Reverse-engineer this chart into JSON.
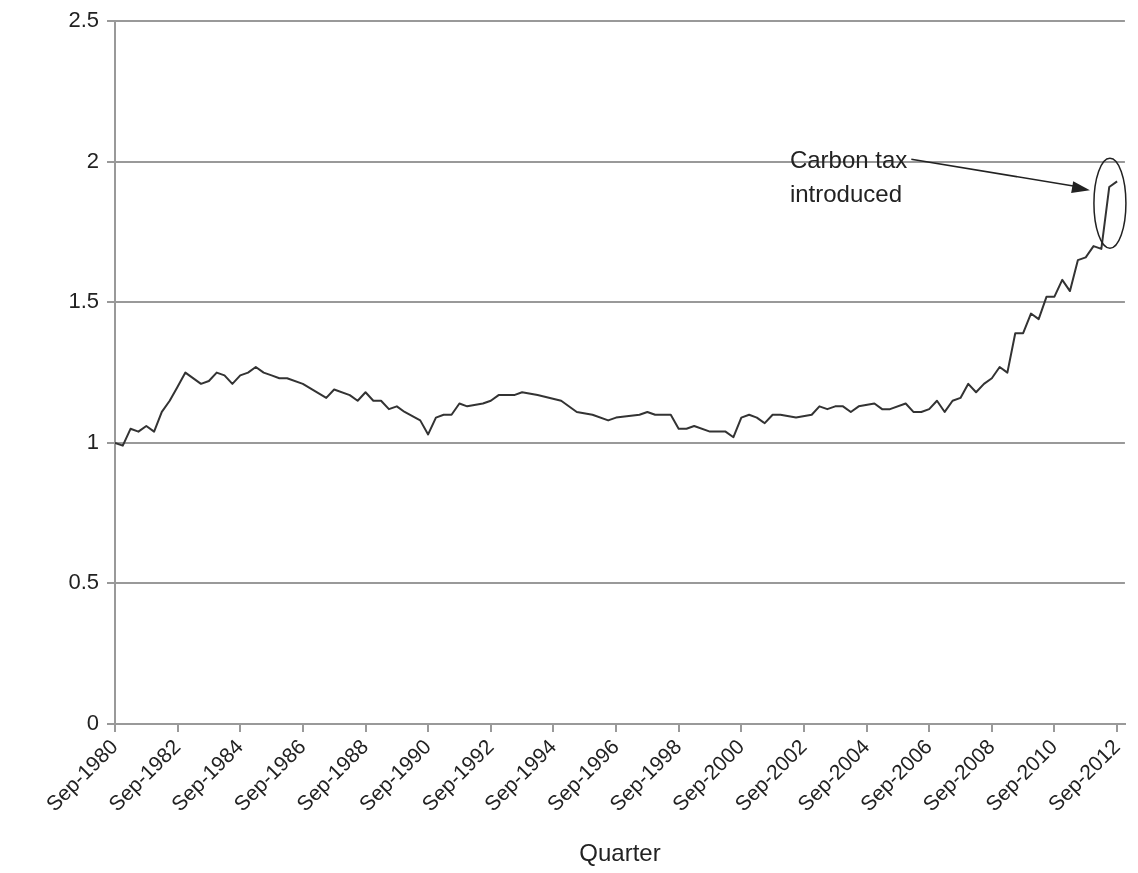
{
  "chart_data": {
    "type": "line",
    "xlabel": "Quarter",
    "x": [
      "1980-09",
      "1980-12",
      "1981-03",
      "1981-06",
      "1981-09",
      "1981-12",
      "1982-03",
      "1982-06",
      "1982-09",
      "1982-12",
      "1983-06",
      "1983-09",
      "1983-12",
      "1984-03",
      "1984-06",
      "1984-09",
      "1984-12",
      "1985-03",
      "1985-06",
      "1985-09",
      "1985-12",
      "1986-03",
      "1986-09",
      "1987-06",
      "1987-09",
      "1988-03",
      "1988-06",
      "1988-09",
      "1988-12",
      "1989-03",
      "1989-06",
      "1989-09",
      "1989-12",
      "1990-06",
      "1990-09",
      "1990-12",
      "1991-03",
      "1991-06",
      "1991-09",
      "1991-12",
      "1992-06",
      "1992-09",
      "1992-12",
      "1993-03",
      "1993-06",
      "1993-09",
      "1994-03",
      "1994-12",
      "1995-06",
      "1995-12",
      "1996-06",
      "1996-09",
      "1997-06",
      "1997-09",
      "1997-12",
      "1998-06",
      "1998-09",
      "1998-12",
      "1999-03",
      "1999-09",
      "1999-12",
      "2000-03",
      "2000-06",
      "2000-09",
      "2000-12",
      "2001-03",
      "2001-06",
      "2001-09",
      "2001-12",
      "2002-06",
      "2002-12",
      "2003-03",
      "2003-06",
      "2003-09",
      "2003-12",
      "2004-03",
      "2004-06",
      "2004-12",
      "2005-03",
      "2005-06",
      "2005-12",
      "2006-03",
      "2006-06",
      "2006-09",
      "2006-12",
      "2007-03",
      "2007-06",
      "2007-09",
      "2007-12",
      "2008-03",
      "2008-06",
      "2008-09",
      "2008-12",
      "2009-03",
      "2009-06",
      "2009-09",
      "2009-12",
      "2010-03",
      "2010-06",
      "2010-09",
      "2010-12",
      "2011-03",
      "2011-06",
      "2011-09",
      "2011-12",
      "2012-03",
      "2012-06",
      "2012-09"
    ],
    "series": [
      {
        "color": "#333333",
        "values": [
          1.0,
          0.99,
          1.05,
          1.04,
          1.06,
          1.04,
          1.11,
          1.15,
          1.2,
          1.25,
          1.21,
          1.22,
          1.25,
          1.24,
          1.21,
          1.24,
          1.25,
          1.27,
          1.25,
          1.24,
          1.23,
          1.23,
          1.21,
          1.16,
          1.19,
          1.17,
          1.15,
          1.18,
          1.15,
          1.15,
          1.12,
          1.13,
          1.11,
          1.08,
          1.03,
          1.09,
          1.1,
          1.1,
          1.14,
          1.13,
          1.14,
          1.15,
          1.17,
          1.17,
          1.17,
          1.18,
          1.17,
          1.15,
          1.11,
          1.1,
          1.08,
          1.09,
          1.1,
          1.11,
          1.1,
          1.1,
          1.05,
          1.05,
          1.06,
          1.04,
          1.04,
          1.04,
          1.02,
          1.09,
          1.1,
          1.09,
          1.07,
          1.1,
          1.1,
          1.09,
          1.1,
          1.13,
          1.12,
          1.13,
          1.13,
          1.11,
          1.13,
          1.14,
          1.12,
          1.12,
          1.14,
          1.11,
          1.11,
          1.12,
          1.15,
          1.11,
          1.15,
          1.16,
          1.21,
          1.18,
          1.21,
          1.23,
          1.27,
          1.25,
          1.39,
          1.39,
          1.46,
          1.44,
          1.52,
          1.52,
          1.58,
          1.54,
          1.65,
          1.66,
          1.7,
          1.69,
          1.91,
          1.93
        ]
      }
    ],
    "xlim": [
      "1980-09",
      "2012-12"
    ],
    "xticks": [
      {
        "value": "1980-09",
        "label": "Sep-1980"
      },
      {
        "value": "1982-09",
        "label": "Sep-1982"
      },
      {
        "value": "1984-09",
        "label": "Sep-1984"
      },
      {
        "value": "1986-09",
        "label": "Sep-1986"
      },
      {
        "value": "1988-09",
        "label": "Sep-1988"
      },
      {
        "value": "1990-09",
        "label": "Sep-1990"
      },
      {
        "value": "1992-09",
        "label": "Sep-1992"
      },
      {
        "value": "1994-09",
        "label": "Sep-1994"
      },
      {
        "value": "1996-09",
        "label": "Sep-1996"
      },
      {
        "value": "1998-09",
        "label": "Sep-1998"
      },
      {
        "value": "2000-09",
        "label": "Sep-2000"
      },
      {
        "value": "2002-09",
        "label": "Sep-2002"
      },
      {
        "value": "2004-09",
        "label": "Sep-2004"
      },
      {
        "value": "2006-09",
        "label": "Sep-2006"
      },
      {
        "value": "2008-09",
        "label": "Sep-2008"
      },
      {
        "value": "2010-09",
        "label": "Sep-2010"
      },
      {
        "value": "2012-09",
        "label": "Sep-2012"
      }
    ],
    "ylim": [
      0,
      2.5
    ],
    "yticks": [
      0,
      0.5,
      1,
      1.5,
      2,
      2.5
    ],
    "grid": "y",
    "legend": false,
    "marker": "none",
    "line_style": "solid",
    "annotations": [
      "Carbon tax introduced"
    ]
  }
}
